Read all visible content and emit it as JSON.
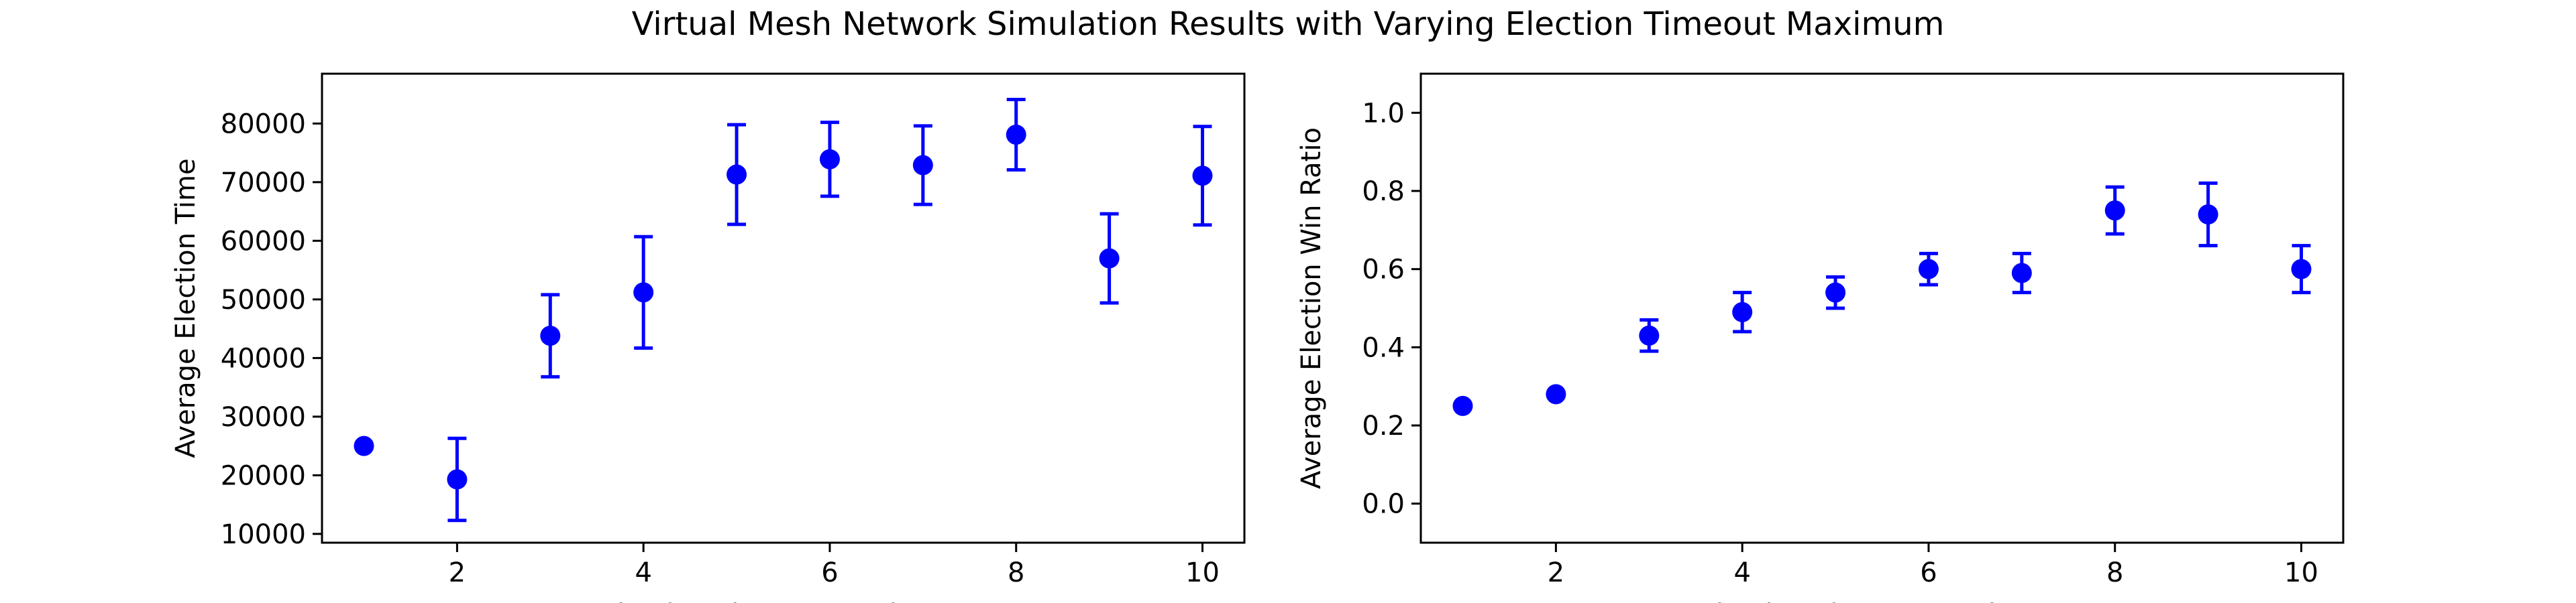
{
  "figure": {
    "title": "Virtual Mesh Network Simulation Results with Varying Election Timeout Maximum"
  },
  "chart_data": [
    {
      "type": "scatter",
      "title": "",
      "xlabel": "Election Timeout Maximum",
      "ylabel": "Average Election Time",
      "xlim": [
        0.55,
        10.45
      ],
      "ylim": [
        8500,
        88500
      ],
      "xticks": [
        2,
        4,
        6,
        8,
        10
      ],
      "yticks": [
        10000,
        20000,
        30000,
        40000,
        50000,
        60000,
        70000,
        80000
      ],
      "color": "#0000ff",
      "grid": false,
      "legend": "none",
      "x": [
        1,
        2,
        3,
        4,
        5,
        6,
        7,
        8,
        9,
        10
      ],
      "y": [
        25000,
        19300,
        43800,
        51200,
        71300,
        73900,
        72900,
        78100,
        57000,
        71100
      ],
      "yerr": [
        0,
        7000,
        7000,
        9500,
        8500,
        6300,
        6700,
        6000,
        7600,
        8400
      ]
    },
    {
      "type": "scatter",
      "title": "",
      "xlabel": "Election Timeout Maximum",
      "ylabel": "Average Election Win Ratio",
      "xlim": [
        0.55,
        10.45
      ],
      "ylim": [
        -0.1,
        1.1
      ],
      "xticks": [
        2,
        4,
        6,
        8,
        10
      ],
      "yticks": [
        0.0,
        0.2,
        0.4,
        0.6,
        0.8,
        1.0
      ],
      "color": "#0000ff",
      "grid": false,
      "legend": "none",
      "x": [
        1,
        2,
        3,
        4,
        5,
        6,
        7,
        8,
        9,
        10
      ],
      "y": [
        0.25,
        0.28,
        0.43,
        0.49,
        0.54,
        0.6,
        0.59,
        0.75,
        0.74,
        0.6
      ],
      "yerr": [
        0,
        0,
        0.04,
        0.05,
        0.04,
        0.04,
        0.05,
        0.06,
        0.08,
        0.06
      ]
    }
  ]
}
